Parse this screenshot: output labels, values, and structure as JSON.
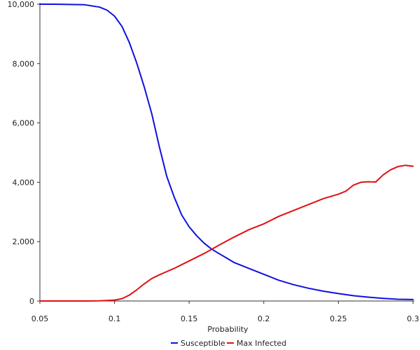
{
  "chart_data": {
    "type": "line",
    "title": "",
    "xlabel": "Probability",
    "ylabel": "",
    "xlim": [
      0.05,
      0.3
    ],
    "ylim": [
      0,
      10000
    ],
    "xticks": [
      0.05,
      0.1,
      0.15,
      0.2,
      0.25,
      0.3
    ],
    "xtick_labels": [
      "0.05",
      "0.1",
      "0.15",
      "0.2",
      "0.25",
      "0.3"
    ],
    "yticks": [
      0,
      2000,
      4000,
      6000,
      8000,
      10000
    ],
    "ytick_labels": [
      "0",
      "2,000",
      "4,000",
      "6,000",
      "8,000",
      "10,000"
    ],
    "grid": false,
    "legend_position": "bottom-center",
    "series": [
      {
        "name": "Susceptible",
        "color": "#1010e0",
        "x": [
          0.05,
          0.06,
          0.07,
          0.08,
          0.09,
          0.095,
          0.1,
          0.105,
          0.11,
          0.115,
          0.12,
          0.125,
          0.13,
          0.135,
          0.14,
          0.145,
          0.15,
          0.155,
          0.16,
          0.165,
          0.17,
          0.175,
          0.18,
          0.19,
          0.2,
          0.21,
          0.22,
          0.23,
          0.24,
          0.25,
          0.26,
          0.27,
          0.28,
          0.29,
          0.3
        ],
        "y": [
          10000,
          10000,
          9990,
          9980,
          9900,
          9800,
          9600,
          9250,
          8700,
          8000,
          7200,
          6300,
          5200,
          4200,
          3500,
          2900,
          2500,
          2200,
          1950,
          1750,
          1600,
          1450,
          1300,
          1100,
          900,
          700,
          550,
          430,
          330,
          250,
          180,
          130,
          90,
          60,
          50
        ]
      },
      {
        "name": "Max Infected",
        "color": "#e01010",
        "x": [
          0.05,
          0.06,
          0.07,
          0.08,
          0.09,
          0.1,
          0.105,
          0.11,
          0.115,
          0.12,
          0.125,
          0.13,
          0.135,
          0.14,
          0.15,
          0.16,
          0.17,
          0.18,
          0.19,
          0.2,
          0.21,
          0.22,
          0.23,
          0.24,
          0.25,
          0.255,
          0.26,
          0.265,
          0.27,
          0.275,
          0.28,
          0.285,
          0.29,
          0.295,
          0.3
        ],
        "y": [
          0,
          0,
          0,
          0,
          5,
          30,
          80,
          200,
          380,
          580,
          760,
          880,
          990,
          1100,
          1350,
          1600,
          1880,
          2150,
          2400,
          2600,
          2850,
          3050,
          3250,
          3450,
          3600,
          3700,
          3900,
          4000,
          4020,
          4010,
          4250,
          4420,
          4530,
          4570,
          4540
        ]
      }
    ]
  }
}
